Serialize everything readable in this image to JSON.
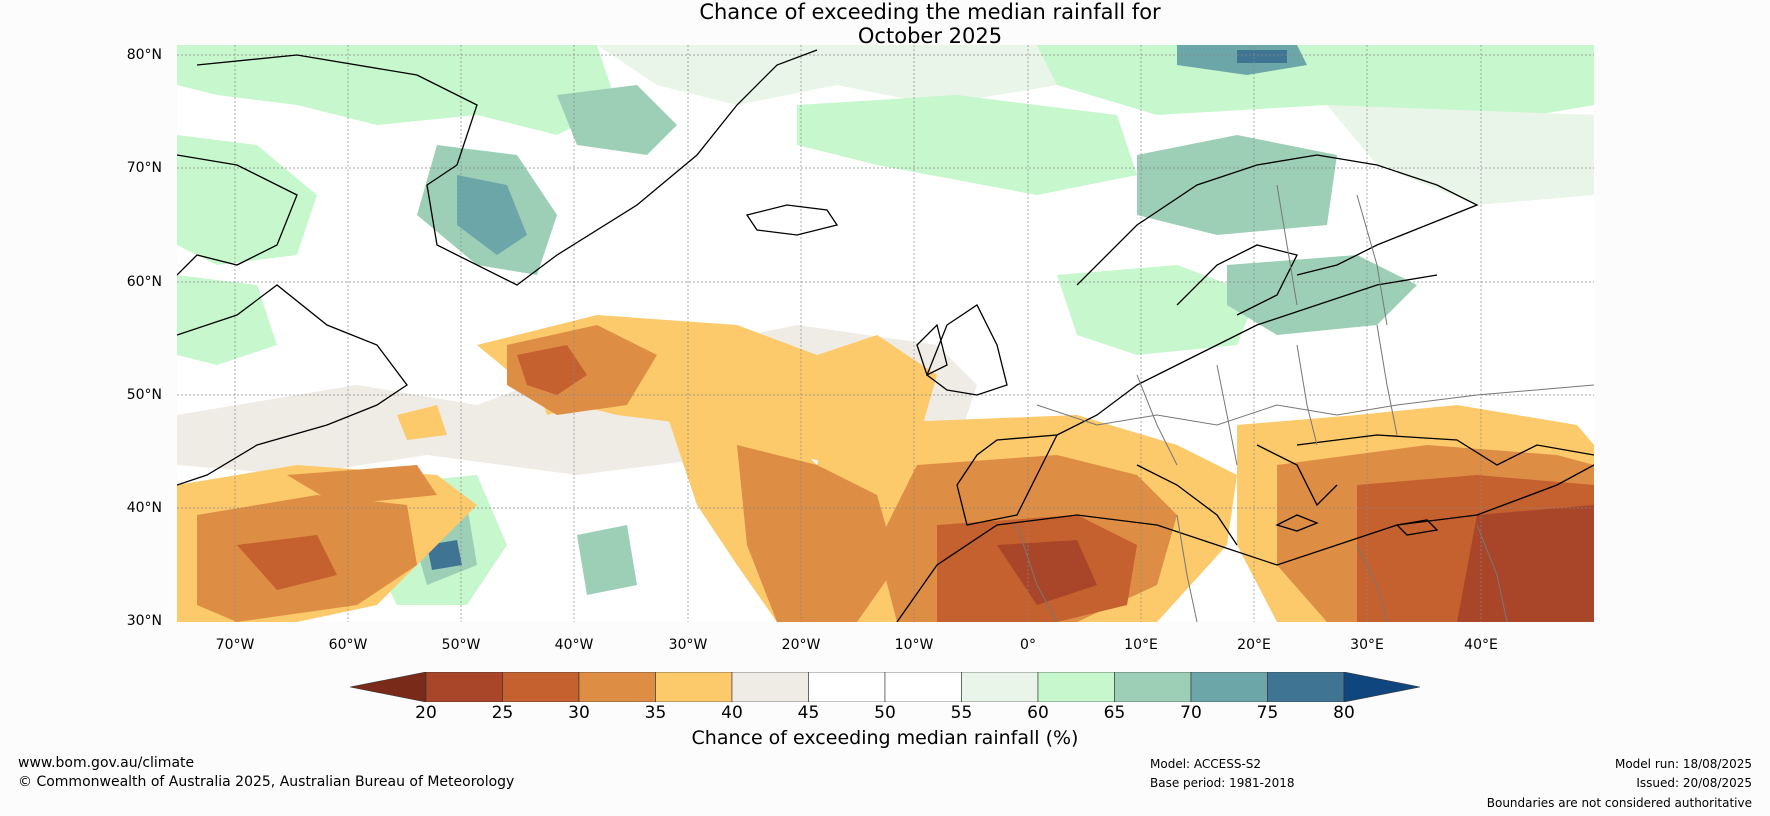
{
  "title": {
    "line1": "Chance of exceeding the median rainfall for",
    "line2": "October 2025"
  },
  "lat_labels": [
    "80°N",
    "70°N",
    "60°N",
    "50°N",
    "40°N",
    "30°N"
  ],
  "lon_labels": [
    "70°W",
    "60°W",
    "50°W",
    "40°W",
    "30°W",
    "20°W",
    "10°W",
    "0°",
    "10°E",
    "20°E",
    "30°E",
    "40°E"
  ],
  "colorbar": {
    "ticks": [
      "20",
      "25",
      "30",
      "35",
      "40",
      "45",
      "50",
      "55",
      "60",
      "65",
      "70",
      "75",
      "80"
    ],
    "label": "Chance of exceeding median rainfall (%)",
    "colors": {
      "below_20": "#7a2a18",
      "20-25": "#a9462a",
      "25-30": "#c5602f",
      "30-35": "#de8d45",
      "35-40": "#fcc96b",
      "40-45": "#efece6",
      "45-50": "#ffffff",
      "50-55": "#ffffff",
      "55-60": "#e8f5e8",
      "60-65": "#c6f7cd",
      "65-70": "#9ccfb6",
      "70-75": "#6da6a8",
      "75-80": "#3f7593",
      "above_80": "#10467e"
    }
  },
  "footer": {
    "website": "www.bom.gov.au/climate",
    "copyright": "© Commonwealth of Australia 2025, Australian Bureau of Meteorology",
    "model": "Model: ACCESS-S2",
    "base_period": "Base period: 1981-2018",
    "model_run": "Model run: 18/08/2025",
    "issued": "Issued: 20/08/2025",
    "disclaimer": "Boundaries are not considered authoritative"
  }
}
